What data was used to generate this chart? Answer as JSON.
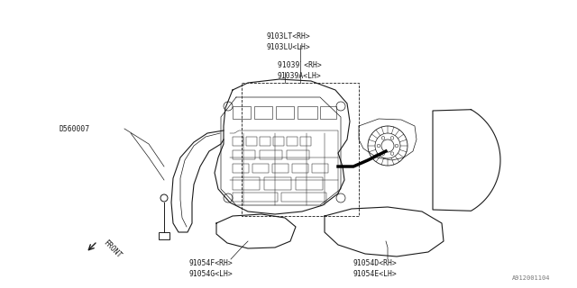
{
  "bg_color": "#ffffff",
  "line_color": "#1a1a1a",
  "labels": {
    "top_label": "9103LT<RH>\n9103LU<LH>",
    "mid_label": "91039 <RH>\n91039A<LH>",
    "left_label": "D560007",
    "bot_left_label": "91054F<RH>\n91054G<LH>",
    "bot_right_label": "91054D<RH>\n91054E<LH>",
    "front_label": "FRONT",
    "corner_label": "A912001104"
  }
}
